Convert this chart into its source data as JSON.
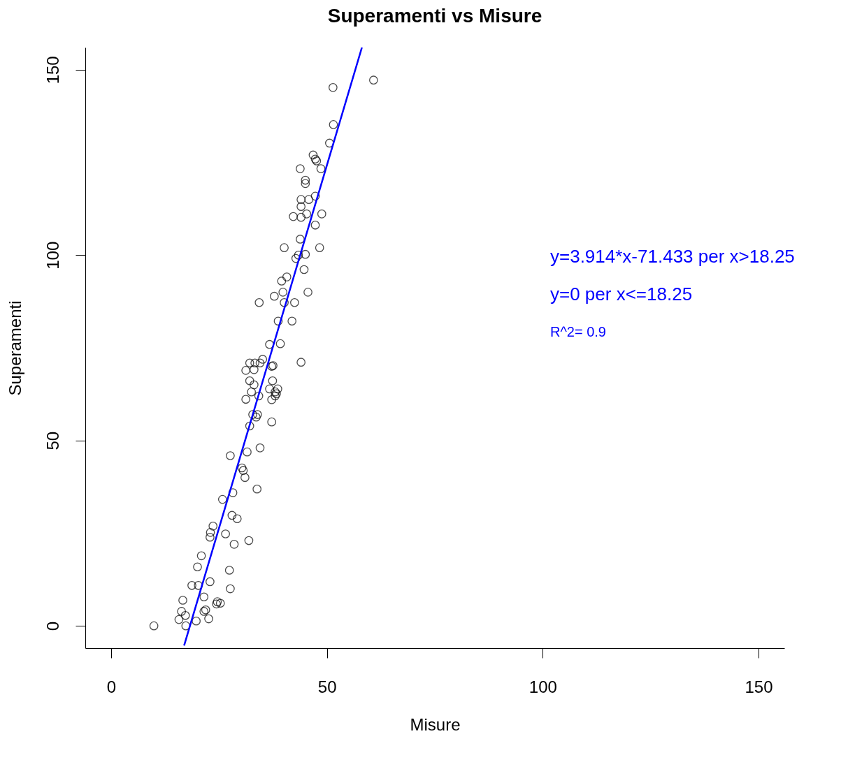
{
  "chart_data": {
    "type": "scatter",
    "title": "Superamenti vs Misure",
    "xlabel": "Misure",
    "ylabel": "Superamenti",
    "xlim": [
      -6,
      156
    ],
    "ylim": [
      -6,
      156
    ],
    "xticks": [
      0,
      50,
      100,
      150
    ],
    "yticks": [
      0,
      50,
      100,
      150
    ],
    "grid": false,
    "annotations": [
      "y=3.914*x-71.433  per x>18.25",
      "y=0  per x<=18.25",
      "R^2= 0.9"
    ],
    "series": [
      {
        "color": "#000000",
        "marker": "circle",
        "x": [
          9.9,
          16.6,
          16.3,
          15.7,
          17.2,
          17.3,
          18.7,
          20.2,
          20,
          20.9,
          19.7,
          21.5,
          21.5,
          21.9,
          22.6,
          22.9,
          22.9,
          23,
          23.6,
          24.6,
          25.3,
          24.4,
          25.8,
          26.5,
          27.6,
          27.4,
          27.6,
          28,
          28.2,
          28.5,
          29.2,
          30.3,
          30.6,
          31,
          31.5,
          31.9,
          32.1,
          31.2,
          31.2,
          32.1,
          32.1,
          32.5,
          32.8,
          33.1,
          33.1,
          33.3,
          33.6,
          33.8,
          33.9,
          34.2,
          34.3,
          34.5,
          34.5,
          35.1,
          36.7,
          36.7,
          37.2,
          37.4,
          37.5,
          37.2,
          37.2,
          38,
          38,
          38.3,
          38.6,
          37.8,
          38.7,
          39.2,
          39.5,
          39.8,
          40.1,
          40.1,
          40.7,
          41.9,
          42.2,
          42.5,
          42.8,
          43.4,
          43.8,
          44,
          43.8,
          44,
          44,
          44,
          44.7,
          45,
          45,
          45,
          45.3,
          45.6,
          45.8,
          46.8,
          47.3,
          47.3,
          47.3,
          47.6,
          48.3,
          48.6,
          48.8,
          50.6,
          51.4,
          51.5,
          60.8
        ],
        "values": [
          0,
          6.9,
          3.9,
          1.7,
          2.8,
          0,
          10.9,
          10.9,
          15.9,
          18.9,
          1.3,
          7.8,
          3.9,
          4.3,
          1.9,
          11.9,
          23.9,
          25.2,
          26.9,
          6.5,
          6.1,
          5.9,
          34.1,
          24.8,
          45.9,
          15,
          10,
          29.8,
          35.9,
          22,
          28.9,
          42.6,
          41.9,
          40,
          46.9,
          23,
          53.9,
          61.1,
          68.9,
          66.1,
          70.9,
          63.1,
          57,
          65,
          69.1,
          70.9,
          56.3,
          36.9,
          57,
          62,
          87.2,
          48,
          70.9,
          71.9,
          75.9,
          63.9,
          70,
          66.1,
          70.2,
          55,
          61,
          63.1,
          62,
          62.6,
          63.9,
          88.9,
          82.2,
          76.1,
          93,
          90,
          87.2,
          102,
          94.1,
          82.2,
          110.4,
          87.2,
          99.1,
          100,
          104.3,
          71.1,
          123.3,
          113.1,
          110.2,
          115,
          96.1,
          120.2,
          119.3,
          100.2,
          111.1,
          90,
          115,
          127,
          125.9,
          115.9,
          108.1,
          125.4,
          102,
          123.3,
          111.1,
          130.2,
          145.2,
          135.2,
          147.2
        ]
      },
      {
        "type": "line",
        "color": "#0000ff",
        "marker": "none",
        "line_style": "solid",
        "x": [
          16.9,
          58.1
        ],
        "values": [
          -5.3,
          156.0
        ]
      }
    ]
  }
}
